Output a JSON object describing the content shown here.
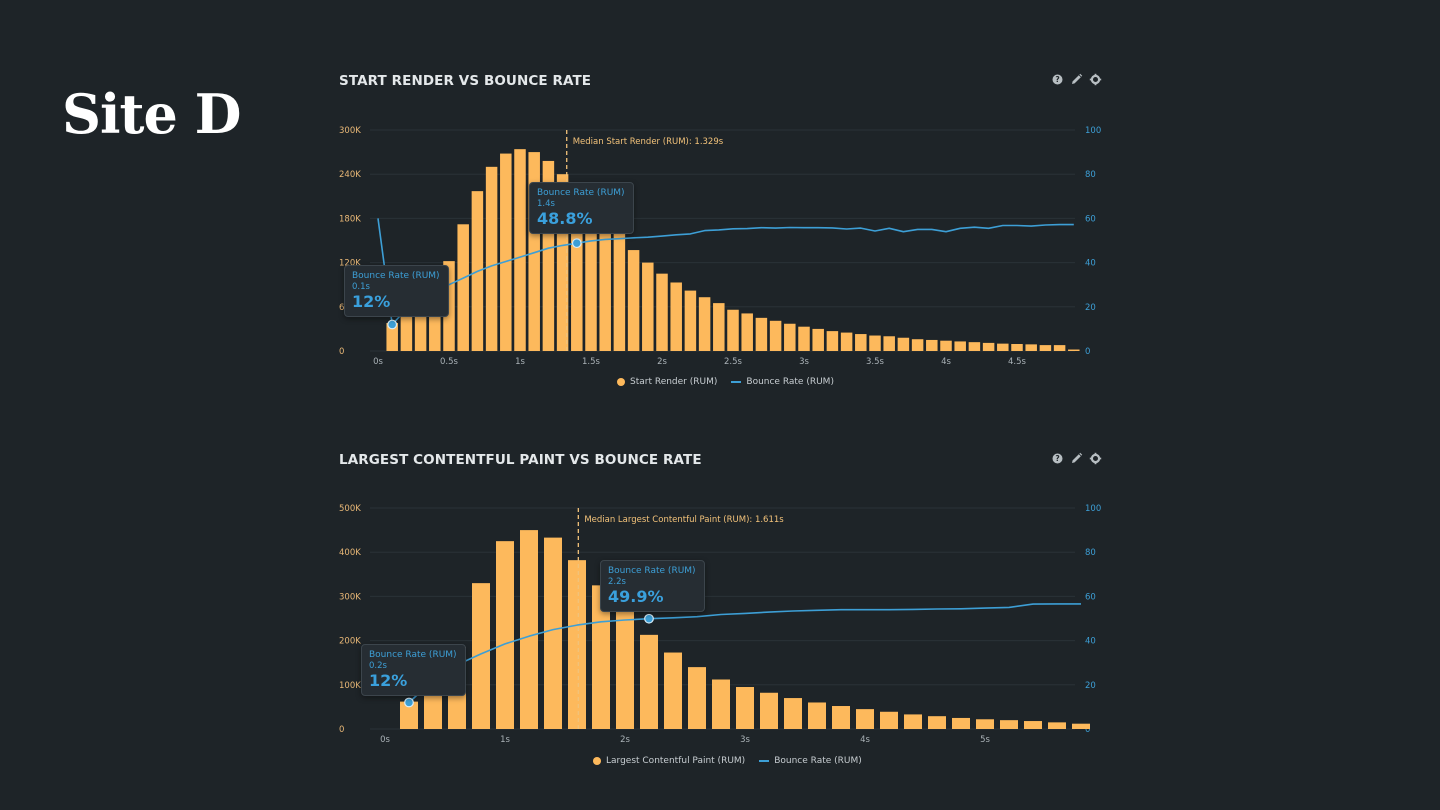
{
  "page": {
    "site_title": "Site D",
    "colors": {
      "background": "#1e2428",
      "bar": "#fdb95c",
      "line": "#3d9fd6",
      "left_axis": "#e9b877",
      "right_axis": "#3d9fd6",
      "median_line": "#f2c27a"
    },
    "toolbar_icons": [
      "help-icon",
      "edit-icon",
      "settings-icon"
    ]
  },
  "chart_data": [
    {
      "type": "bar",
      "title": "START RENDER VS BOUNCE RATE",
      "xlabel": "",
      "ylabel": "",
      "x_ticks": [
        "0s",
        "0.5s",
        "1s",
        "1.5s",
        "2s",
        "2.5s",
        "3s",
        "3.5s",
        "4s",
        "4.5s"
      ],
      "x_tick_values": [
        0,
        0.5,
        1,
        1.5,
        2,
        2.5,
        3,
        3.5,
        4,
        4.5
      ],
      "xlim": [
        0,
        4.95
      ],
      "y_left_ticks": [
        "0",
        "60K",
        "120K",
        "180K",
        "240K",
        "300K"
      ],
      "y_left_tick_values": [
        0,
        60,
        120,
        180,
        240,
        300
      ],
      "ylim_left": [
        0,
        300
      ],
      "y_left_units": "thousands",
      "y_right_ticks": [
        "0",
        "20",
        "40",
        "60",
        "80",
        "100"
      ],
      "ylim_right": [
        0,
        100
      ],
      "grid": true,
      "legend_position": "bottom-center",
      "legend": [
        "Start Render (RUM)",
        "Bounce Rate (RUM)"
      ],
      "median": {
        "x": 1.329,
        "label": "Median Start Render (RUM): 1.329s"
      },
      "series": [
        {
          "name": "Start Render (RUM)",
          "kind": "bar",
          "axis": "left",
          "x": [
            0.1,
            0.2,
            0.3,
            0.4,
            0.5,
            0.6,
            0.7,
            0.8,
            0.9,
            1.0,
            1.1,
            1.2,
            1.3,
            1.4,
            1.5,
            1.6,
            1.7,
            1.8,
            1.9,
            2.0,
            2.1,
            2.2,
            2.3,
            2.4,
            2.5,
            2.6,
            2.7,
            2.8,
            2.9,
            3.0,
            3.1,
            3.2,
            3.3,
            3.4,
            3.5,
            3.6,
            3.7,
            3.8,
            3.9,
            4.0,
            4.1,
            4.2,
            4.3,
            4.4,
            4.5,
            4.6,
            4.7,
            4.8,
            4.9
          ],
          "values": [
            38,
            52,
            63,
            91,
            122,
            172,
            217,
            250,
            268,
            274,
            270,
            258,
            240,
            218,
            202,
            180,
            160,
            137,
            120,
            105,
            93,
            82,
            73,
            65,
            56,
            51,
            45,
            41,
            37,
            33,
            30,
            27,
            25,
            23,
            21,
            20,
            18,
            16,
            15,
            14,
            13,
            12,
            11,
            10,
            9.5,
            9,
            8,
            8,
            2
          ]
        },
        {
          "name": "Bounce Rate (RUM)",
          "kind": "line",
          "axis": "right",
          "x": [
            0.0,
            0.1,
            0.2,
            0.3,
            0.4,
            0.5,
            0.6,
            0.7,
            0.8,
            0.9,
            1.0,
            1.1,
            1.2,
            1.3,
            1.4,
            1.5,
            1.6,
            1.7,
            1.8,
            1.9,
            2.0,
            2.1,
            2.2,
            2.3,
            2.4,
            2.5,
            2.6,
            2.7,
            2.8,
            2.9,
            3.0,
            3.1,
            3.2,
            3.3,
            3.4,
            3.5,
            3.6,
            3.7,
            3.8,
            3.9,
            4.0,
            4.1,
            4.2,
            4.3,
            4.4,
            4.5,
            4.6,
            4.7,
            4.8,
            4.9
          ],
          "values": [
            60,
            12,
            19,
            23,
            27,
            30,
            33,
            36,
            38.5,
            40.5,
            42.5,
            44.5,
            46.5,
            47.8,
            48.8,
            49.8,
            50.5,
            50.8,
            51.2,
            51.5,
            52,
            52.6,
            53,
            54.5,
            54.8,
            55.3,
            55.4,
            55.8,
            55.6,
            55.9,
            55.8,
            55.8,
            55.7,
            55.2,
            55.6,
            54.3,
            55.5,
            54,
            55,
            55,
            54,
            55.5,
            56,
            55.5,
            56.8,
            56.8,
            56.5,
            57,
            57.2,
            57.2
          ]
        }
      ],
      "tooltips": [
        {
          "series": "Bounce Rate (RUM)",
          "x_label": "0.1s",
          "value": "12%"
        },
        {
          "series": "Bounce Rate (RUM)",
          "x_label": "1.4s",
          "value": "48.8%"
        }
      ]
    },
    {
      "type": "bar",
      "title": "LARGEST CONTENTFUL PAINT VS BOUNCE RATE",
      "xlabel": "",
      "ylabel": "",
      "x_ticks": [
        "0s",
        "1s",
        "2s",
        "3s",
        "4s",
        "5s"
      ],
      "x_tick_values": [
        0,
        1,
        2,
        3,
        4,
        5
      ],
      "xlim": [
        0,
        5.9
      ],
      "y_left_ticks": [
        "0",
        "100K",
        "200K",
        "300K",
        "400K",
        "500K"
      ],
      "y_left_tick_values": [
        0,
        100,
        200,
        300,
        400,
        500
      ],
      "ylim_left": [
        0,
        500
      ],
      "y_left_units": "thousands",
      "y_right_ticks": [
        "0",
        "20",
        "40",
        "60",
        "80",
        "100"
      ],
      "ylim_right": [
        0,
        100
      ],
      "grid": true,
      "legend_position": "bottom-center",
      "legend": [
        "Largest Contentful Paint (RUM)",
        "Bounce Rate (RUM)"
      ],
      "median": {
        "x": 1.611,
        "label": "Median Largest Contentful Paint (RUM): 1.611s"
      },
      "series": [
        {
          "name": "Largest Contentful Paint (RUM)",
          "kind": "bar",
          "axis": "left",
          "x": [
            0.2,
            0.4,
            0.6,
            0.8,
            1.0,
            1.2,
            1.4,
            1.6,
            1.8,
            2.0,
            2.2,
            2.4,
            2.6,
            2.8,
            3.0,
            3.2,
            3.4,
            3.6,
            3.8,
            4.0,
            4.2,
            4.4,
            4.6,
            4.8,
            5.0,
            5.2,
            5.4,
            5.6,
            5.8
          ],
          "values": [
            62,
            112,
            185,
            330,
            425,
            450,
            433,
            382,
            325,
            265,
            213,
            173,
            140,
            112,
            95,
            82,
            70,
            60,
            52,
            45,
            39,
            33,
            29,
            25,
            22,
            20,
            18,
            15,
            12
          ]
        },
        {
          "name": "Bounce Rate (RUM)",
          "kind": "line",
          "axis": "right",
          "x": [
            0.2,
            0.4,
            0.6,
            0.8,
            1.0,
            1.2,
            1.4,
            1.6,
            1.8,
            2.0,
            2.2,
            2.4,
            2.6,
            2.8,
            3.0,
            3.2,
            3.4,
            3.6,
            3.8,
            4.0,
            4.2,
            4.4,
            4.6,
            4.8,
            5.0,
            5.2,
            5.4,
            5.6,
            5.8
          ],
          "values": [
            12,
            22,
            29,
            34,
            38.5,
            42,
            45,
            47,
            48.5,
            49.3,
            49.9,
            50.3,
            50.8,
            51.8,
            52.3,
            52.9,
            53.4,
            53.7,
            54,
            54,
            54,
            54.1,
            54.3,
            54.4,
            54.7,
            55,
            56.5,
            56.6,
            56.6
          ]
        }
      ],
      "tooltips": [
        {
          "series": "Bounce Rate (RUM)",
          "x_label": "0.2s",
          "value": "12%"
        },
        {
          "series": "Bounce Rate (RUM)",
          "x_label": "2.2s",
          "value": "49.9%"
        }
      ]
    }
  ]
}
